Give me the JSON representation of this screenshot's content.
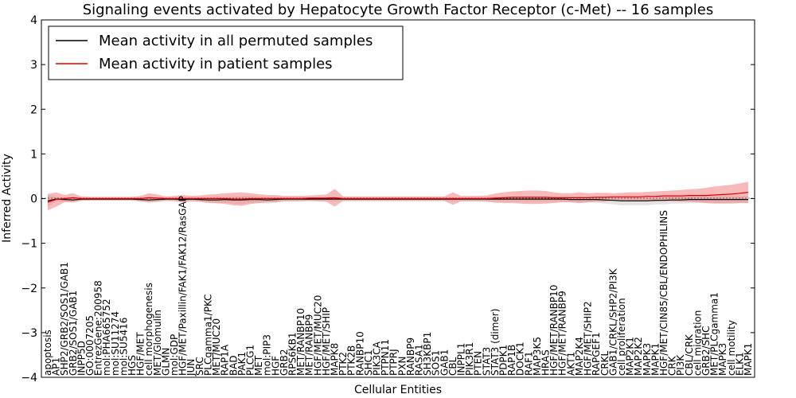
{
  "chart_data": {
    "type": "line",
    "title": "Signaling events activated by Hepatocyte Growth Factor Receptor (c-Met) -- 16 samples",
    "xlabel": "Cellular Entities",
    "ylabel": "Inferred Activity",
    "ylim": [
      -4,
      4
    ],
    "yticks": [
      "−4",
      "−3",
      "−2",
      "−1",
      "0",
      "1",
      "2",
      "3",
      "4"
    ],
    "ytick_values": [
      -4,
      -3,
      -2,
      -1,
      0,
      1,
      2,
      3,
      4
    ],
    "grid": false,
    "legend_position": "top-left",
    "categories": [
      "apoptosis",
      "AP1",
      "SHP2/GRB2/SOS1/GAB1",
      "GRB2/SOS1/GAB1",
      "INPP5D",
      "GO:0007205",
      "EntrezGene:200958",
      "mol:PHA665752",
      "mol:SU11274",
      "mol:SU5416",
      "HGS",
      "HGF/MET",
      "cell morphogenesis",
      "MET/Glomulin",
      "GLMN",
      "mol:GDP",
      "HGF/MET/Paxillin/FAK1/FAK12/RasGAP",
      "JUN",
      "SRC",
      "PLCgamma1/PKC",
      "MET/MUC20",
      "RAP1A",
      "BAD",
      "PAK1",
      "PLCG1",
      "MET",
      "mol:PIP3",
      "HGF",
      "GRB2",
      "RPS6KB1",
      "MET/RANBP10",
      "MET/RANBP9",
      "HGF/MET/MUC20",
      "HGF/MET/SHIP",
      "MAPK8",
      "PTK2",
      "PTK2B",
      "RANBP10",
      "SHC1",
      "PIK3CA",
      "PTPN11",
      "PTPRJ",
      "PXN",
      "RANBP9",
      "RASA1",
      "SH3KBP1",
      "SOS1",
      "GAB1",
      "CBL",
      "INPPL1",
      "PIK3R1",
      "PTEN",
      "STAT3",
      "STAT3 (dimer)",
      "PDPK1",
      "RAP1B",
      "DOCK1",
      "RAF1",
      "MAP3K5",
      "HRAS",
      "HGF/MET/RANBP10",
      "HGF/MET/RANBP9",
      "AKT1",
      "MAP2K4",
      "HGF/MET/SHIP2",
      "RAPGEF1",
      "CRKL",
      "GAB1/CRKL/SHP2/PI3K",
      "cell proliferation",
      "MAP2K1",
      "MAP2K2",
      "MAPK3",
      "MAPK1",
      "HGF/MET/CIN85/CBL/ENDOPHILINS",
      "CRK",
      "PI3K",
      "CBL/CRK",
      "cell migration",
      "GRB2/SHC",
      "MET/PLCgamma1",
      "MAPK3",
      "cell motility",
      "ELK1",
      "MAPK1"
    ],
    "series": [
      {
        "name": "Mean activity in all permuted samples",
        "color": "#000000",
        "band_color": "#c8c8c8",
        "values": [
          -0.05,
          -0.01,
          -0.02,
          -0.03,
          -0.01,
          -0.01,
          -0.01,
          -0.01,
          -0.01,
          -0.01,
          -0.01,
          -0.02,
          -0.03,
          -0.02,
          -0.01,
          -0.01,
          -0.02,
          -0.01,
          -0.02,
          -0.03,
          -0.03,
          -0.02,
          -0.03,
          -0.03,
          -0.02,
          -0.02,
          -0.03,
          -0.02,
          -0.01,
          -0.01,
          -0.01,
          -0.01,
          -0.01,
          -0.01,
          -0.01,
          -0.01,
          -0.01,
          -0.01,
          -0.01,
          -0.01,
          -0.01,
          -0.01,
          -0.01,
          -0.01,
          -0.01,
          -0.01,
          -0.01,
          -0.01,
          -0.01,
          -0.01,
          -0.01,
          -0.01,
          -0.01,
          -0.01,
          -0.01,
          -0.01,
          -0.01,
          -0.01,
          -0.01,
          -0.01,
          -0.01,
          -0.01,
          -0.02,
          -0.02,
          -0.02,
          -0.02,
          -0.03,
          -0.04,
          -0.05,
          -0.05,
          -0.05,
          -0.05,
          -0.04,
          -0.04,
          -0.03,
          -0.03,
          -0.02,
          -0.02,
          -0.02,
          -0.02,
          -0.02,
          -0.02,
          -0.02,
          -0.02
        ],
        "band": [
          0.14,
          0.05,
          0.05,
          0.06,
          0.04,
          0.04,
          0.04,
          0.04,
          0.04,
          0.04,
          0.04,
          0.05,
          0.06,
          0.05,
          0.04,
          0.04,
          0.06,
          0.05,
          0.05,
          0.07,
          0.08,
          0.07,
          0.08,
          0.09,
          0.08,
          0.07,
          0.08,
          0.07,
          0.05,
          0.05,
          0.05,
          0.05,
          0.05,
          0.05,
          0.05,
          0.05,
          0.05,
          0.05,
          0.05,
          0.05,
          0.05,
          0.05,
          0.05,
          0.05,
          0.05,
          0.05,
          0.05,
          0.05,
          0.05,
          0.05,
          0.05,
          0.05,
          0.05,
          0.05,
          0.06,
          0.06,
          0.06,
          0.06,
          0.06,
          0.06,
          0.06,
          0.06,
          0.07,
          0.07,
          0.07,
          0.07,
          0.08,
          0.09,
          0.1,
          0.1,
          0.1,
          0.1,
          0.09,
          0.09,
          0.08,
          0.08,
          0.08,
          0.08,
          0.08,
          0.08,
          0.08,
          0.08,
          0.08,
          0.08
        ]
      },
      {
        "name": "Mean activity in patient samples",
        "color": "#e00000",
        "band_color": "#f08080",
        "values": [
          -0.08,
          -0.02,
          0.0,
          0.02,
          0.0,
          0.0,
          0.0,
          0.0,
          0.0,
          0.0,
          0.0,
          0.0,
          0.02,
          0.01,
          0.0,
          0.0,
          0.0,
          0.0,
          0.0,
          0.0,
          0.0,
          0.0,
          -0.01,
          -0.01,
          0.0,
          0.0,
          0.0,
          0.0,
          0.0,
          0.0,
          0.0,
          0.01,
          0.01,
          0.01,
          0.02,
          0.0,
          0.0,
          0.0,
          0.0,
          0.0,
          0.0,
          0.0,
          0.0,
          0.0,
          0.0,
          0.0,
          0.0,
          0.0,
          0.0,
          0.0,
          0.0,
          0.0,
          0.0,
          0.01,
          0.02,
          0.03,
          0.03,
          0.03,
          0.03,
          0.03,
          0.02,
          0.02,
          0.02,
          0.02,
          0.02,
          0.03,
          0.03,
          0.04,
          0.04,
          0.04,
          0.04,
          0.05,
          0.05,
          0.06,
          0.06,
          0.06,
          0.07,
          0.07,
          0.07,
          0.08,
          0.09,
          0.1,
          0.12,
          0.14
        ],
        "band": [
          0.18,
          0.16,
          0.08,
          0.1,
          0.05,
          0.04,
          0.04,
          0.04,
          0.04,
          0.04,
          0.04,
          0.06,
          0.1,
          0.08,
          0.05,
          0.06,
          0.08,
          0.06,
          0.07,
          0.09,
          0.1,
          0.12,
          0.14,
          0.15,
          0.12,
          0.1,
          0.08,
          0.08,
          0.06,
          0.06,
          0.06,
          0.06,
          0.07,
          0.08,
          0.2,
          0.05,
          0.05,
          0.05,
          0.05,
          0.05,
          0.05,
          0.05,
          0.05,
          0.05,
          0.05,
          0.05,
          0.05,
          0.05,
          0.14,
          0.06,
          0.06,
          0.06,
          0.07,
          0.1,
          0.12,
          0.13,
          0.14,
          0.15,
          0.15,
          0.14,
          0.12,
          0.1,
          0.1,
          0.12,
          0.1,
          0.1,
          0.1,
          0.08,
          0.09,
          0.1,
          0.1,
          0.1,
          0.11,
          0.11,
          0.12,
          0.13,
          0.14,
          0.15,
          0.17,
          0.19,
          0.2,
          0.21,
          0.22,
          0.24
        ]
      }
    ]
  }
}
